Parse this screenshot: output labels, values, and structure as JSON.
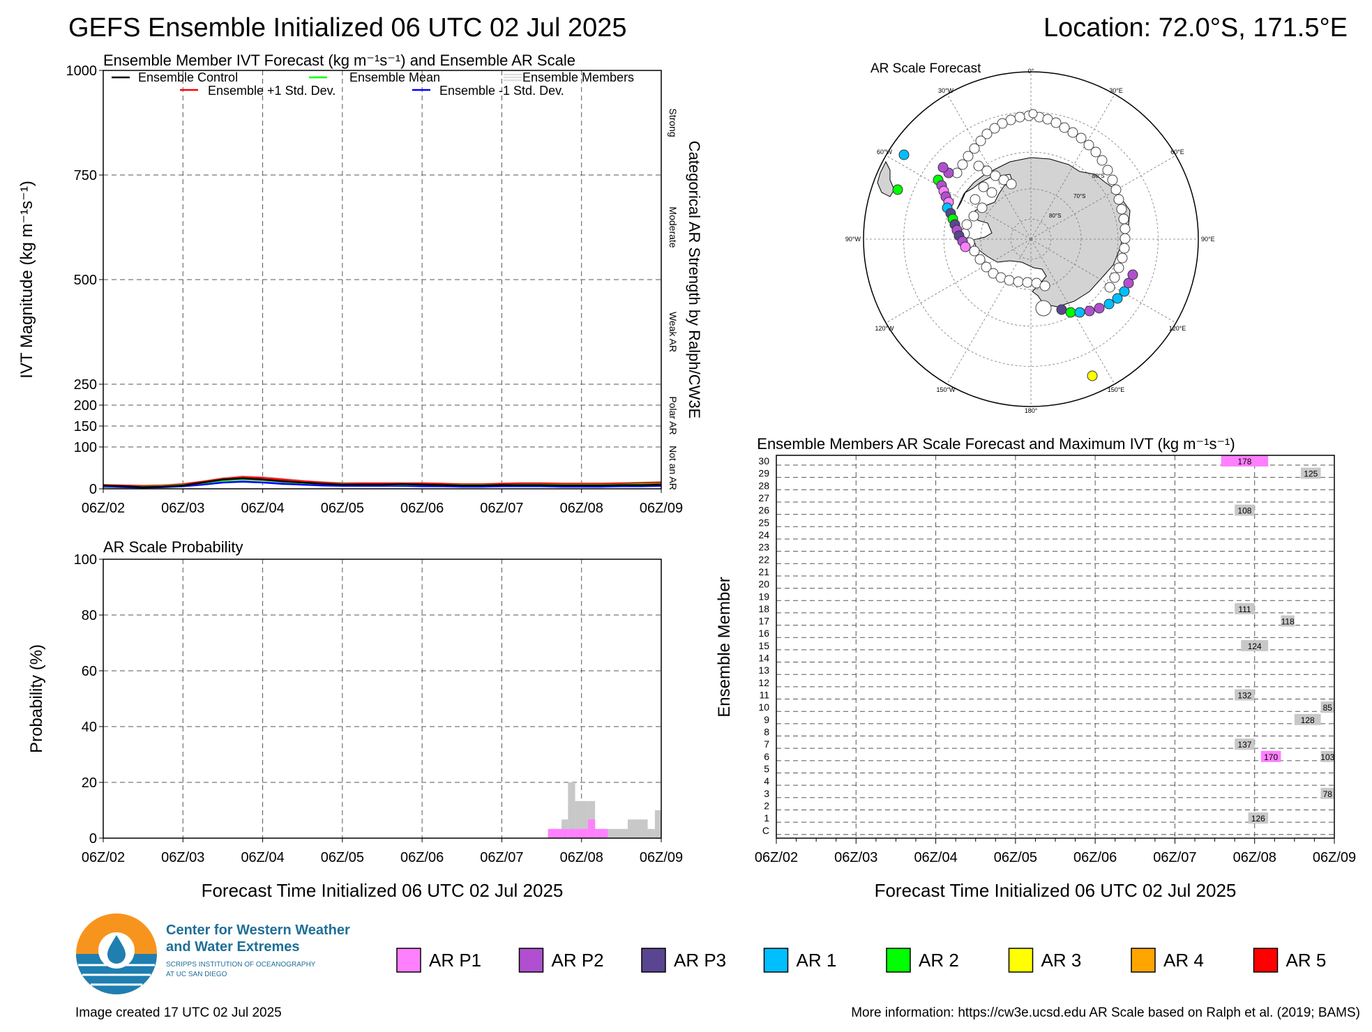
{
  "header": {
    "title": "GEFS Ensemble Initialized 06 UTC 02 Jul 2025",
    "location": "Location: 72.0°S, 171.5°E"
  },
  "x_ticks": [
    "06Z/02",
    "06Z/03",
    "06Z/04",
    "06Z/05",
    "06Z/06",
    "06Z/07",
    "06Z/08",
    "06Z/09"
  ],
  "x_axis_label": "Forecast Time Initialized 06 UTC 02 Jul 2025",
  "ivt_panel": {
    "title": "Ensemble Member IVT Forecast (kg m⁻¹s⁻¹) and Ensemble AR Scale",
    "ylabel": "IVT Magnitude (kg m⁻¹s⁻¹)",
    "right_title": "Categorical AR Strength by Ralph/CW3E",
    "categories": [
      "Strong",
      "Moderate",
      "Weak AR",
      "Polar AR",
      "Not an AR"
    ],
    "legend": {
      "control": "Ensemble Control",
      "mean": "Ensemble Mean",
      "members": "Ensemble Members",
      "plus_std": "Ensemble +1 Std. Dev.",
      "minus_std": "Ensemble -1 Std. Dev."
    }
  },
  "prob_panel": {
    "title": "AR Scale Probability",
    "ylabel": "Probability (%)"
  },
  "polar_map": {
    "title": "AR Scale Forecast",
    "lon_labels": [
      "0°",
      "30°E",
      "60°E",
      "90°E",
      "120°E",
      "150°E",
      "180°",
      "150°W",
      "120°W",
      "90°W",
      "60°W",
      "30°W"
    ],
    "lat_labels": [
      "60°S",
      "70°S",
      "80°S"
    ]
  },
  "member_panel": {
    "title": "Ensemble Members AR Scale Forecast and Maximum IVT (kg m⁻¹s⁻¹)",
    "ylabel": "Ensemble Member",
    "rows": [
      "C",
      "1",
      "2",
      "3",
      "4",
      "5",
      "6",
      "7",
      "8",
      "9",
      "10",
      "11",
      "12",
      "13",
      "14",
      "15",
      "16",
      "17",
      "18",
      "19",
      "20",
      "21",
      "22",
      "23",
      "24",
      "25",
      "26",
      "27",
      "28",
      "29",
      "30"
    ]
  },
  "legend_scale": [
    "AR P1",
    "AR P2",
    "AR P3",
    "AR 1",
    "AR 2",
    "AR 3",
    "AR 4",
    "AR 5"
  ],
  "colors": {
    "AR P1": "#ff80ff",
    "AR P2": "#b050d0",
    "AR P3": "#5a4590",
    "AR 1": "#00bfff",
    "AR 2": "#00ff00",
    "AR 3": "#ffff00",
    "AR 4": "#ffa500",
    "AR 5": "#ff0000",
    "Not an AR": "#c8c8c8"
  },
  "logo": {
    "line1": "Center for Western Weather",
    "line2": "and Water Extremes",
    "line3": "SCRIPPS INSTITUTION OF OCEANOGRAPHY",
    "line4": "AT UC SAN DIEGO"
  },
  "footer": {
    "created": "Image created 17 UTC 02 Jul 2025",
    "info": "More information: https://cw3e.ucsd.edu AR Scale based on Ralph et al. (2019; BAMS)"
  },
  "chart_data": [
    {
      "type": "line",
      "title": "Ensemble Member IVT Forecast (kg m⁻¹s⁻¹) and Ensemble AR Scale",
      "ylabel": "IVT Magnitude (kg m⁻¹s⁻¹)",
      "ylim": [
        0,
        1000
      ],
      "yticks": [
        0,
        100,
        150,
        200,
        250,
        500,
        750,
        1000
      ],
      "xlim_days": [
        0,
        7
      ],
      "x_step_hours": 6,
      "series": [
        {
          "name": "Ensemble Control",
          "color": "#000000",
          "values": [
            8,
            6,
            4,
            5,
            8,
            15,
            22,
            25,
            22,
            18,
            15,
            12,
            10,
            10,
            10,
            11,
            10,
            9,
            8,
            8,
            9,
            9,
            9,
            8,
            8,
            8,
            9,
            9,
            10,
            11,
            12,
            10,
            9,
            8,
            7,
            6,
            5,
            12,
            20,
            30,
            38,
            46,
            60,
            38,
            42,
            36,
            22,
            22,
            26,
            30,
            28,
            20,
            14
          ]
        },
        {
          "name": "Ensemble Mean",
          "color": "#00ff00",
          "values": [
            7,
            6,
            5,
            6,
            9,
            14,
            20,
            23,
            21,
            17,
            14,
            12,
            11,
            10,
            10,
            10,
            10,
            9,
            9,
            9,
            9,
            10,
            10,
            9,
            9,
            9,
            10,
            11,
            11,
            12,
            12,
            11,
            10,
            9,
            8,
            7,
            6,
            14,
            24,
            34,
            42,
            50,
            58,
            60,
            58,
            56,
            54,
            52,
            50,
            50,
            51,
            52,
            52
          ]
        },
        {
          "name": "Ensemble +1 Std. Dev.",
          "color": "#ff0000",
          "values": [
            9,
            8,
            7,
            8,
            11,
            17,
            24,
            28,
            26,
            22,
            18,
            15,
            13,
            13,
            13,
            13,
            13,
            12,
            11,
            11,
            12,
            13,
            13,
            12,
            12,
            12,
            13,
            14,
            15,
            15,
            16,
            14,
            13,
            12,
            10,
            9,
            8,
            20,
            34,
            48,
            60,
            72,
            80,
            100,
            92,
            90,
            78,
            72,
            70,
            72,
            74,
            76,
            80
          ]
        },
        {
          "name": "Ensemble -1 Std. Dev.",
          "color": "#0000ff",
          "values": [
            5,
            4,
            3,
            4,
            6,
            10,
            15,
            17,
            15,
            12,
            10,
            8,
            7,
            7,
            7,
            7,
            6,
            6,
            5,
            5,
            6,
            6,
            6,
            5,
            5,
            5,
            6,
            6,
            7,
            7,
            8,
            7,
            6,
            5,
            4,
            4,
            3,
            7,
            12,
            18,
            22,
            26,
            28,
            26,
            28,
            24,
            22,
            24,
            22,
            24,
            22,
            20,
            18
          ]
        }
      ]
    },
    {
      "type": "bar",
      "title": "AR Scale Probability",
      "ylabel": "Probability (%)",
      "ylim": [
        0,
        100
      ],
      "yticks": [
        0,
        20,
        40,
        60,
        80,
        100
      ],
      "bins": [
        {
          "x_start": 5.58,
          "x_end": 5.75,
          "notar": 3.3,
          "arp1": 3.3
        },
        {
          "x_start": 5.75,
          "x_end": 5.83,
          "notar": 6.7,
          "arp1": 3.3
        },
        {
          "x_start": 5.83,
          "x_end": 5.92,
          "notar": 20.0,
          "arp1": 3.3
        },
        {
          "x_start": 5.92,
          "x_end": 6.08,
          "notar": 13.3,
          "arp1": 3.3
        },
        {
          "x_start": 6.08,
          "x_end": 6.17,
          "notar": 13.3,
          "arp1": 6.7
        },
        {
          "x_start": 6.17,
          "x_end": 6.33,
          "notar": 3.3,
          "arp1": 3.3
        },
        {
          "x_start": 6.33,
          "x_end": 6.58,
          "notar": 3.3,
          "arp1": 0
        },
        {
          "x_start": 6.58,
          "x_end": 6.83,
          "notar": 6.7,
          "arp1": 0
        },
        {
          "x_start": 6.83,
          "x_end": 6.92,
          "notar": 3.3,
          "arp1": 0
        },
        {
          "x_start": 6.92,
          "x_end": 7.0,
          "notar": 10.0,
          "arp1": 0
        }
      ]
    },
    {
      "type": "table",
      "title": "Ensemble Members AR Scale Forecast and Maximum IVT (kg m⁻¹s⁻¹)",
      "entries": [
        {
          "member": "30",
          "x_start": 5.58,
          "x_end": 6.17,
          "category": "AR P1",
          "max_ivt": 178
        },
        {
          "member": "29",
          "x_start": 6.58,
          "x_end": 6.83,
          "category": "Not an AR",
          "max_ivt": 125
        },
        {
          "member": "26",
          "x_start": 5.75,
          "x_end": 6.0,
          "category": "Not an AR",
          "max_ivt": 108
        },
        {
          "member": "18",
          "x_start": 5.75,
          "x_end": 6.0,
          "category": "Not an AR",
          "max_ivt": 111
        },
        {
          "member": "17",
          "x_start": 6.33,
          "x_end": 6.5,
          "category": "Not an AR",
          "max_ivt": 118
        },
        {
          "member": "15",
          "x_start": 5.83,
          "x_end": 6.17,
          "category": "Not an AR",
          "max_ivt": 124
        },
        {
          "member": "11",
          "x_start": 5.75,
          "x_end": 6.0,
          "category": "Not an AR",
          "max_ivt": 132
        },
        {
          "member": "10",
          "x_start": 6.83,
          "x_end": 7.0,
          "category": "Not an AR",
          "max_ivt": 85
        },
        {
          "member": "9",
          "x_start": 6.5,
          "x_end": 6.83,
          "category": "Not an AR",
          "max_ivt": 128
        },
        {
          "member": "7",
          "x_start": 5.75,
          "x_end": 6.0,
          "category": "Not an AR",
          "max_ivt": 137
        },
        {
          "member": "6",
          "x_start": 6.08,
          "x_end": 6.33,
          "category": "AR P1",
          "max_ivt": 170
        },
        {
          "member": "6",
          "x_start": 6.83,
          "x_end": 7.0,
          "category": "Not an AR",
          "max_ivt": 103
        },
        {
          "member": "3",
          "x_start": 6.83,
          "x_end": 7.0,
          "category": "Not an AR",
          "max_ivt": 78
        },
        {
          "member": "1",
          "x_start": 5.92,
          "x_end": 6.17,
          "category": "Not an AR",
          "max_ivt": 126
        }
      ]
    }
  ]
}
